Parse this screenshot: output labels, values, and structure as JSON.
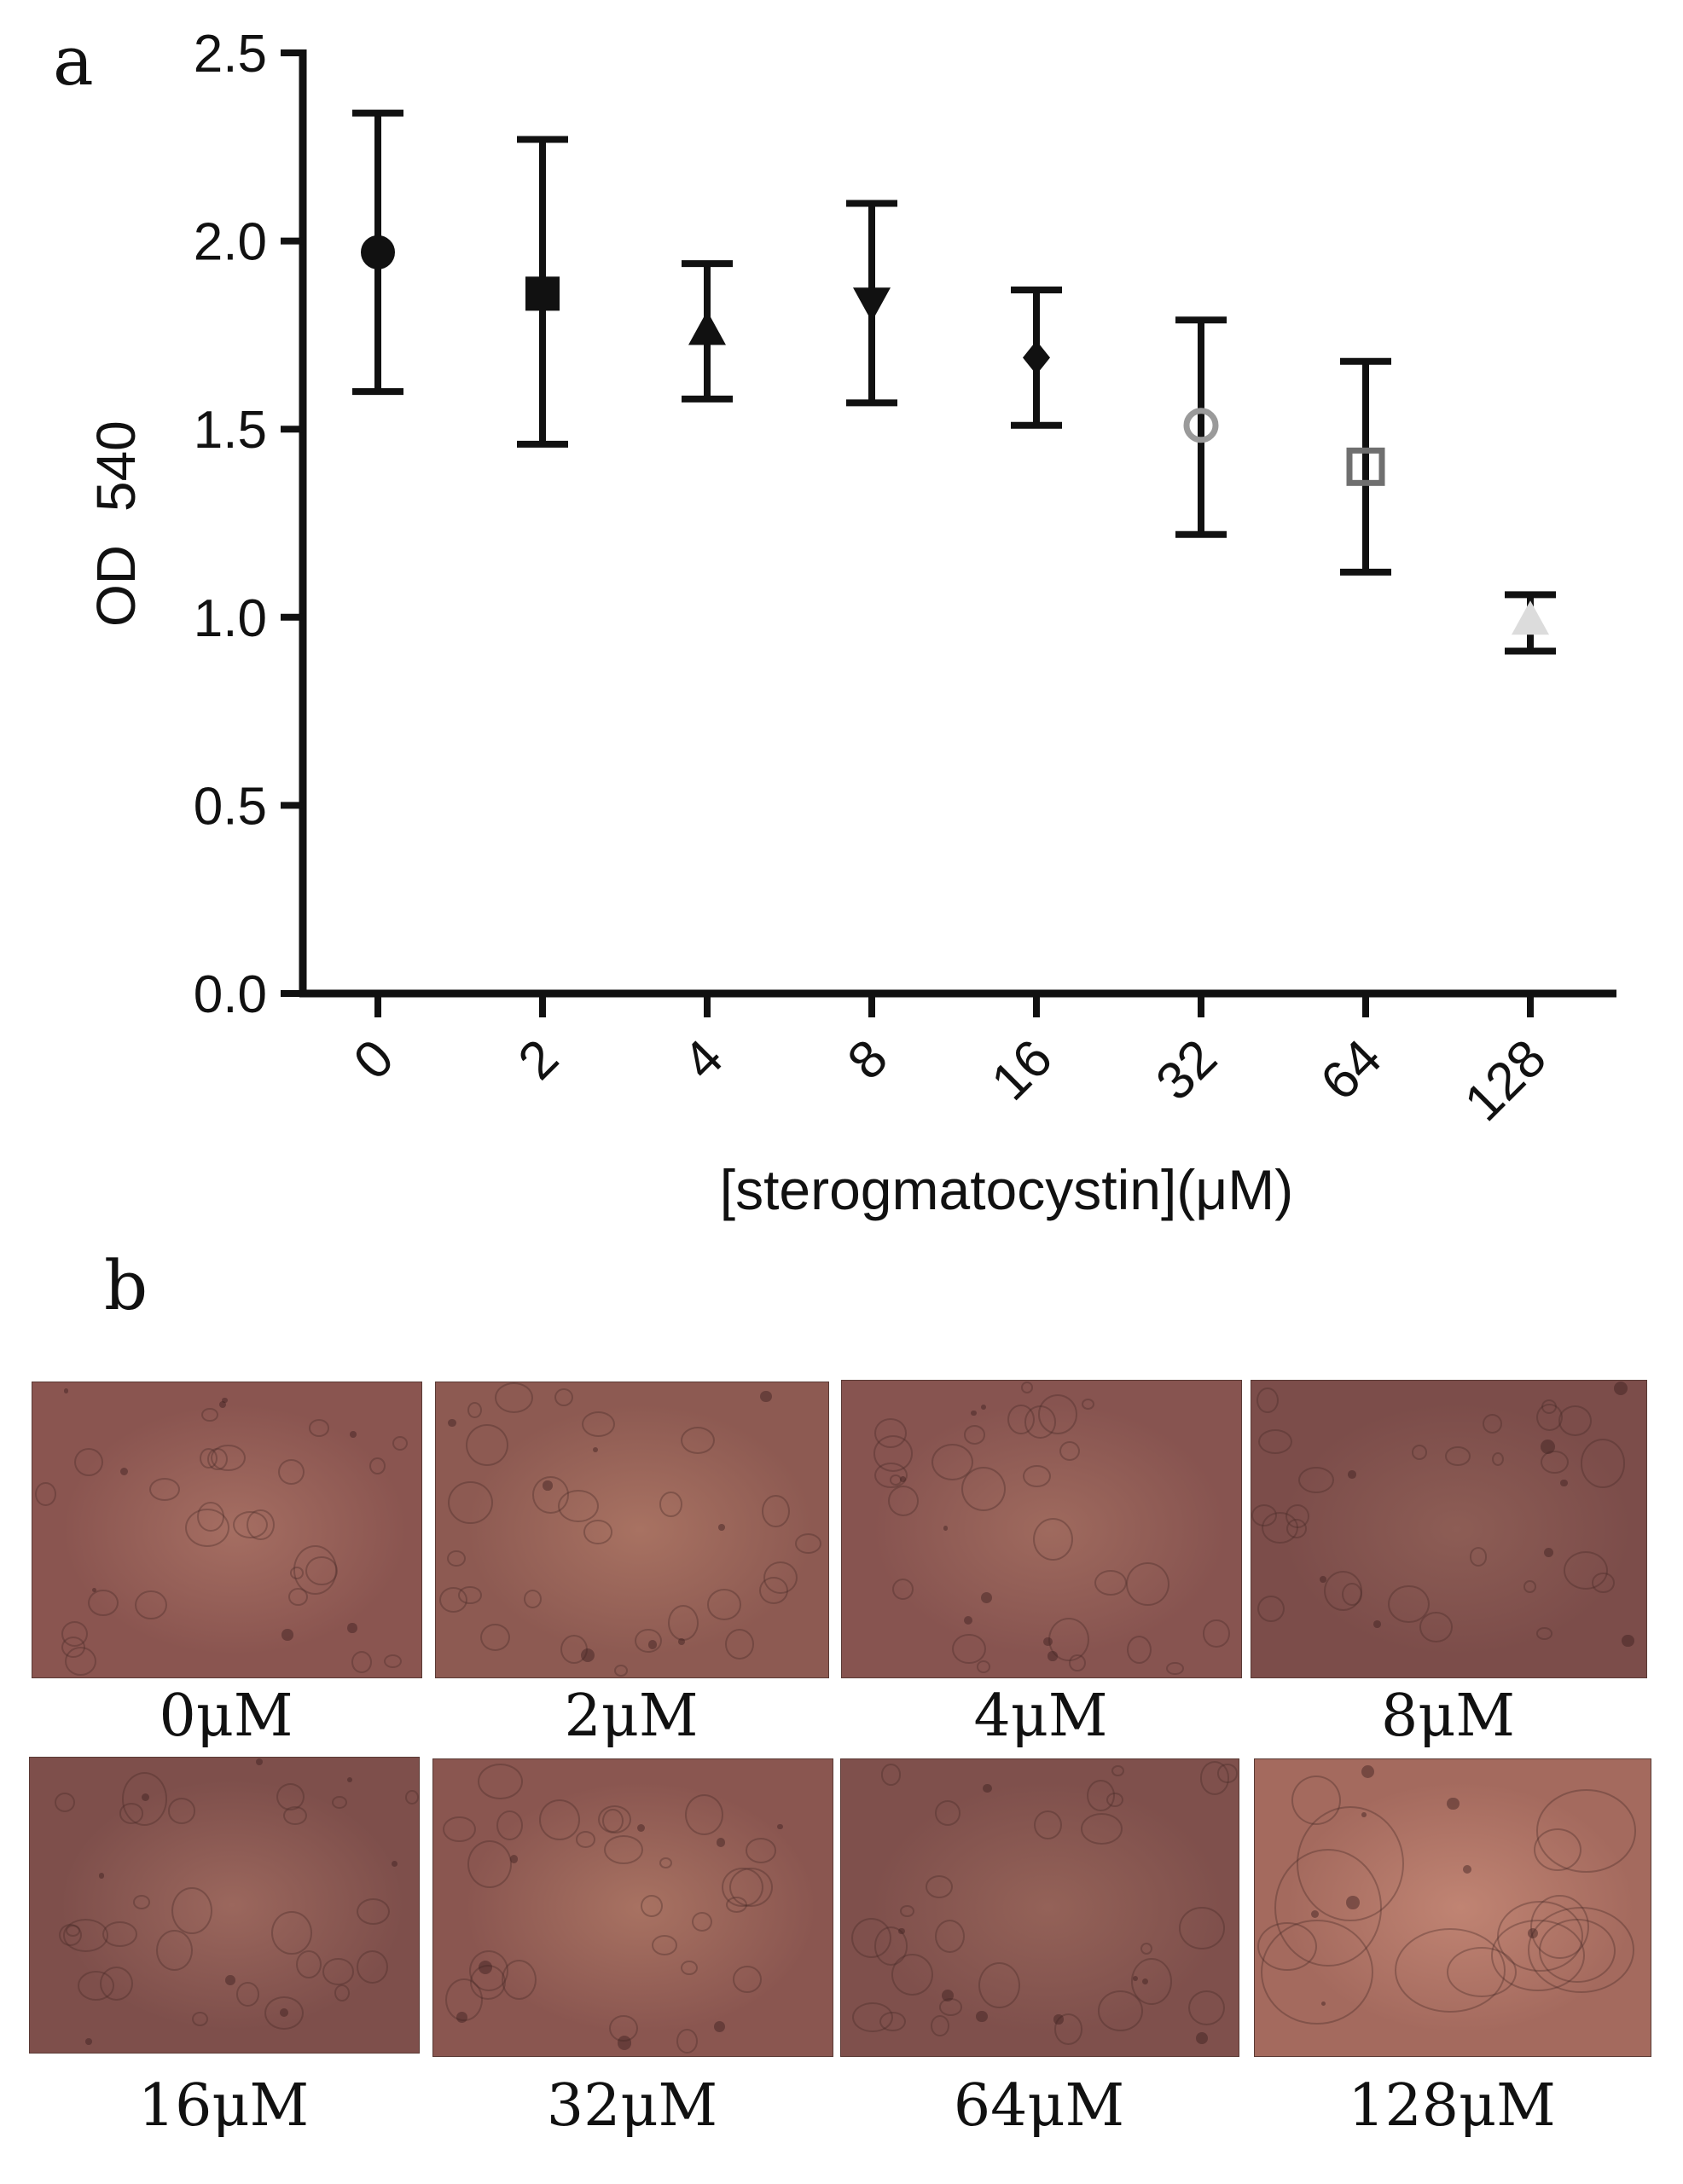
{
  "panels": {
    "a": "a",
    "b": "b"
  },
  "chart_data": {
    "type": "scatter",
    "categories": [
      "0",
      "2",
      "4",
      "8",
      "16",
      "32",
      "64",
      "128"
    ],
    "values": [
      1.97,
      1.86,
      1.76,
      1.84,
      1.69,
      1.51,
      1.4,
      0.99
    ],
    "error_upper": [
      2.34,
      2.27,
      1.94,
      2.1,
      1.87,
      1.79,
      1.68,
      1.06
    ],
    "error_lower": [
      1.6,
      1.46,
      1.58,
      1.57,
      1.51,
      1.22,
      1.12,
      0.91
    ],
    "markers": [
      "circle",
      "square",
      "triangle-up",
      "triangle-down",
      "diamond",
      "circle-open",
      "square-open",
      "triangle-up"
    ],
    "marker_colors": [
      "#111111",
      "#111111",
      "#111111",
      "#111111",
      "#111111",
      "#9a9a9a",
      "#6f6f6f",
      "#dcdcdc"
    ],
    "ylabel": "OD",
    "ylabel_sub": "540",
    "xlabel": "[sterogmatocystin](μM)",
    "ylim": [
      0,
      2.5
    ],
    "yticks": [
      "0.0",
      "0.5",
      "1.0",
      "1.5",
      "2.0",
      "2.5"
    ],
    "grid": false
  },
  "images": [
    {
      "label": "0μM",
      "tone": "#8a5550",
      "center": "#a56e62"
    },
    {
      "label": "2μM",
      "tone": "#8d5a52",
      "center": "#a87262"
    },
    {
      "label": "4μM",
      "tone": "#875450",
      "center": "#9f6a5e"
    },
    {
      "label": "8μM",
      "tone": "#7c4d4a",
      "center": "#8d5d55"
    },
    {
      "label": "16μM",
      "tone": "#7e4f4b",
      "center": "#9b675d"
    },
    {
      "label": "32μM",
      "tone": "#8a5650",
      "center": "#a87262"
    },
    {
      "label": "64μM",
      "tone": "#7f504c",
      "center": "#946258"
    },
    {
      "label": "128μM",
      "tone": "#a46a5e",
      "center": "#c08473"
    }
  ]
}
